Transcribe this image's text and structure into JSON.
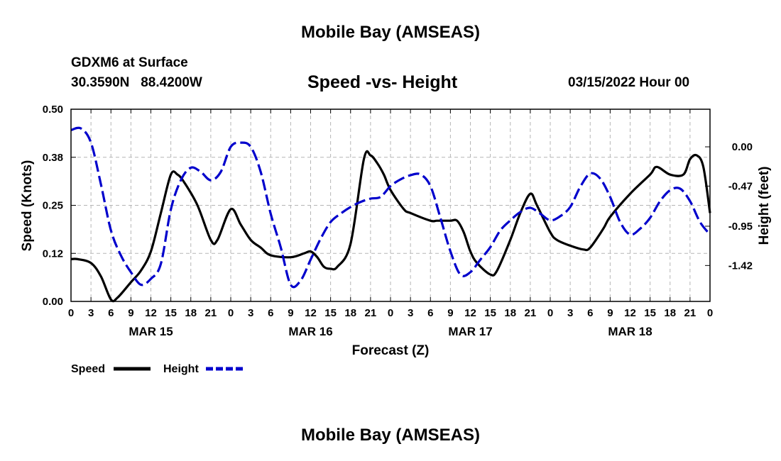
{
  "header": {
    "title": "Mobile Bay (AMSEAS)",
    "station": "GDXM6 at Surface",
    "coords": "30.3590N   88.4200W",
    "chart_title": "Speed -vs- Height",
    "datetime": "03/15/2022 Hour 00"
  },
  "footer": {
    "title": "Mobile Bay (AMSEAS)"
  },
  "chart_data": {
    "type": "line",
    "title": "Speed -vs- Height",
    "xlabel": "Forecast (Z)",
    "ylabel": "Speed (Knots)",
    "y2label": "Height (feet)",
    "xlim": [
      0,
      96
    ],
    "ylim": [
      0,
      0.5
    ],
    "y2lim": [
      -1.85,
      0.45
    ],
    "x_ticks": [
      0,
      3,
      6,
      9,
      12,
      15,
      18,
      21,
      24,
      27,
      30,
      33,
      36,
      39,
      42,
      45,
      48,
      51,
      54,
      57,
      60,
      63,
      66,
      69,
      72,
      75,
      78,
      81,
      84,
      87,
      90,
      93,
      96
    ],
    "x_tick_labels": [
      "0",
      "3",
      "6",
      "9",
      "12",
      "15",
      "18",
      "21",
      "0",
      "3",
      "6",
      "9",
      "12",
      "15",
      "18",
      "21",
      "0",
      "3",
      "6",
      "9",
      "12",
      "15",
      "18",
      "21",
      "0",
      "3",
      "6",
      "9",
      "12",
      "15",
      "18",
      "21",
      "0"
    ],
    "date_labels": [
      {
        "x": 12,
        "label": "MAR 15"
      },
      {
        "x": 36,
        "label": "MAR 16"
      },
      {
        "x": 60,
        "label": "MAR 17"
      },
      {
        "x": 84,
        "label": "MAR 18"
      }
    ],
    "y_ticks": [
      0,
      0.125,
      0.25,
      0.375,
      0.5
    ],
    "y_tick_labels": [
      "0.00",
      "0.12",
      "0.25",
      "0.38",
      "0.50"
    ],
    "y2_ticks": [
      0,
      -0.47,
      -0.95,
      -1.42
    ],
    "y2_tick_labels": [
      "0.00",
      "-0.47",
      "-0.95",
      "-1.42"
    ],
    "grid": true,
    "legend_position": "bottom-left",
    "series": [
      {
        "name": "Speed",
        "axis": "left",
        "color": "#000000",
        "style": "solid",
        "x": [
          0,
          1,
          3,
          4.5,
          6,
          7,
          9,
          10.5,
          12,
          13.5,
          15,
          16,
          17,
          19,
          21,
          22,
          24,
          25.5,
          27,
          28.5,
          30,
          33,
          35,
          36,
          37,
          38,
          39,
          40,
          42,
          44,
          45,
          46,
          47,
          48,
          50,
          51,
          54,
          55,
          57,
          58,
          59,
          60,
          61,
          63,
          64,
          66,
          67.5,
          69,
          70,
          72,
          73,
          75,
          77,
          78,
          80,
          81,
          84,
          87,
          88,
          90,
          92,
          93,
          94,
          95,
          96
        ],
        "y": [
          0.11,
          0.11,
          0.1,
          0.065,
          0.005,
          0.01,
          0.05,
          0.08,
          0.13,
          0.23,
          0.33,
          0.33,
          0.31,
          0.25,
          0.16,
          0.16,
          0.24,
          0.2,
          0.16,
          0.14,
          0.12,
          0.115,
          0.125,
          0.13,
          0.115,
          0.09,
          0.085,
          0.09,
          0.15,
          0.37,
          0.38,
          0.36,
          0.33,
          0.29,
          0.24,
          0.23,
          0.21,
          0.21,
          0.21,
          0.21,
          0.18,
          0.13,
          0.1,
          0.07,
          0.08,
          0.16,
          0.23,
          0.28,
          0.25,
          0.18,
          0.16,
          0.145,
          0.135,
          0.14,
          0.19,
          0.22,
          0.28,
          0.33,
          0.35,
          0.33,
          0.33,
          0.37,
          0.38,
          0.35,
          0.23
        ]
      },
      {
        "name": "Height",
        "axis": "right",
        "color": "#0000cc",
        "style": "dashed",
        "x": [
          0,
          1.5,
          3,
          4.5,
          6,
          7.5,
          9,
          10.5,
          12,
          13.5,
          15,
          16.5,
          18,
          19.5,
          21,
          22.5,
          24,
          25.5,
          27,
          28.5,
          30,
          31.5,
          33,
          34.5,
          36,
          37.5,
          39,
          40.5,
          42,
          43.5,
          45,
          46.5,
          48,
          49.5,
          51,
          52.5,
          54,
          55.5,
          57,
          58.5,
          60,
          61.5,
          63,
          64.5,
          66,
          67.5,
          69,
          70.5,
          72,
          73.5,
          75,
          76.5,
          78,
          79.5,
          81,
          82.5,
          84,
          85.5,
          87,
          88.5,
          90,
          91.5,
          93,
          94.5,
          96
        ],
        "y": [
          0.2,
          0.22,
          0.05,
          -0.45,
          -1.0,
          -1.3,
          -1.5,
          -1.65,
          -1.58,
          -1.4,
          -0.75,
          -0.4,
          -0.25,
          -0.3,
          -0.4,
          -0.3,
          0.0,
          0.05,
          0.0,
          -0.3,
          -0.8,
          -1.2,
          -1.65,
          -1.6,
          -1.35,
          -1.1,
          -0.9,
          -0.8,
          -0.72,
          -0.66,
          -0.62,
          -0.6,
          -0.47,
          -0.39,
          -0.34,
          -0.33,
          -0.47,
          -0.85,
          -1.25,
          -1.53,
          -1.5,
          -1.35,
          -1.2,
          -1.0,
          -0.88,
          -0.78,
          -0.73,
          -0.8,
          -0.88,
          -0.83,
          -0.72,
          -0.48,
          -0.32,
          -0.38,
          -0.6,
          -0.9,
          -1.05,
          -0.98,
          -0.85,
          -0.65,
          -0.52,
          -0.5,
          -0.65,
          -0.9,
          -1.05
        ]
      }
    ]
  }
}
